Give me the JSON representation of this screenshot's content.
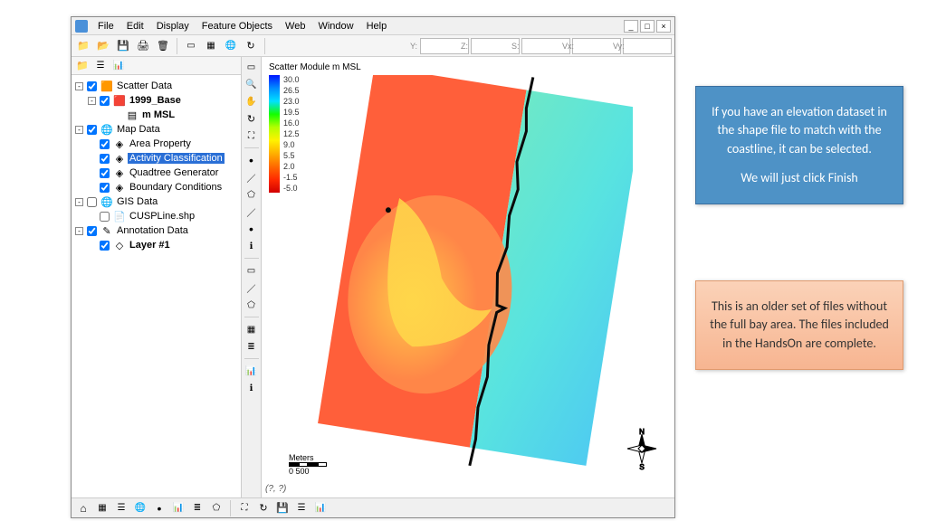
{
  "menubar": {
    "items": [
      "File",
      "Edit",
      "Display",
      "Feature Objects",
      "Web",
      "Window",
      "Help"
    ]
  },
  "window_controls": {
    "min": "_",
    "max": "□",
    "close": "×"
  },
  "main_toolbar": {
    "buttons": [
      "new",
      "open",
      "save",
      "print",
      "trash",
      "sep",
      "tool-a",
      "tool-b",
      "tool-c",
      "tool-d"
    ]
  },
  "coord_readout": {
    "labels": [
      "Y:",
      "Z:",
      "S:",
      "Vx:",
      "Vy:"
    ]
  },
  "side_toolbar_buttons": [
    "folder",
    "collapse",
    "refresh"
  ],
  "tree": {
    "scatter_data": "Scatter Data",
    "base_1999": "1999_Base",
    "m_msl": "m MSL",
    "map_data": "Map Data",
    "area_property": "Area Property",
    "activity_classification": "Activity Classification",
    "quadtree_generator": "Quadtree Generator",
    "boundary_conditions": "Boundary Conditions",
    "gis_data": "GIS Data",
    "cuspline": "CUSPLine.shp",
    "annotation_data": "Annotation Data",
    "layer1": "Layer #1"
  },
  "vtoolbar_groups": [
    [
      "select",
      "zoom",
      "pan",
      "rotate",
      "fit"
    ],
    [
      "point",
      "line",
      "poly",
      "curve",
      "arc",
      "text"
    ],
    [
      "measure",
      "info"
    ],
    [
      "grid",
      "mesh"
    ]
  ],
  "legend": {
    "title": "Scatter Module m MSL",
    "ticks": [
      "30.0",
      "26.5",
      "23.0",
      "19.5",
      "16.0",
      "12.5",
      "9.0",
      "5.5",
      "2.0",
      "-1.5",
      "-5.0"
    ],
    "gradient_stops": [
      "#0015ff",
      "#008cff",
      "#00e0ff",
      "#13ff00",
      "#b3ff00",
      "#fff200",
      "#ffb000",
      "#ff6a00",
      "#ff2a00",
      "#d10000"
    ]
  },
  "scalebar": {
    "label": "Meters",
    "range": "0   500"
  },
  "cursor_readout": "(?, ?)",
  "bottom_toolbar_buttons": [
    "home",
    "grid",
    "layers",
    "globe",
    "point",
    "chart",
    "db",
    "info",
    "sep",
    "fit",
    "poly",
    "save",
    "layers",
    "chart"
  ],
  "callouts": {
    "blue_p1": "If you have an elevation dataset in the shape file to match with the coastline, it can be selected.",
    "blue_p2": "We will just click Finish",
    "orange_p1": "This is an older set of files without the full bay area. The files included in the HandsOn are complete."
  },
  "map_style": {
    "rotate_deg": 9,
    "left_color_a": "#ff5f3a",
    "left_color_b": "#ff8a4a",
    "plume_color": "#ffd84a",
    "right_top": "#6de8c8",
    "right_mid": "#58e3e0",
    "right_bot": "#4fccf0",
    "coast_color": "#0a0a0a"
  }
}
